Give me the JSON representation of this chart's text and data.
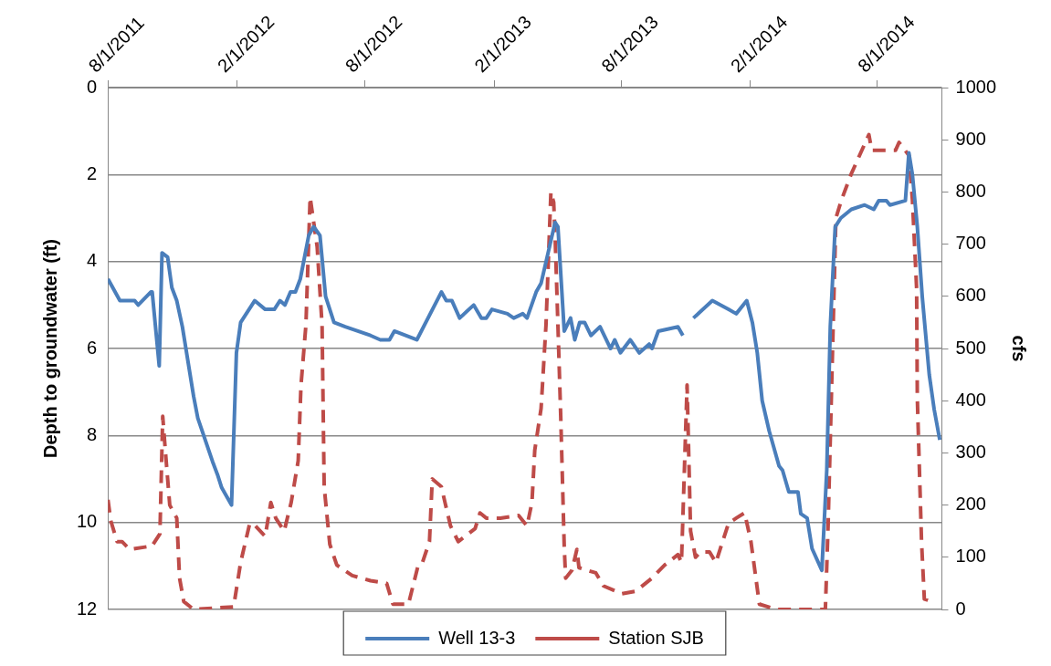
{
  "chart_data": {
    "type": "line",
    "ylabel": "Depth to groundwater (ft)",
    "y2label": "cfs",
    "xlim": [
      "2011-08-01",
      "2014-11-01"
    ],
    "xticks": [
      {
        "value": "2011-08-01",
        "label": "8/1/2011"
      },
      {
        "value": "2012-02-01",
        "label": "2/1/2012"
      },
      {
        "value": "2012-08-01",
        "label": "8/1/2012"
      },
      {
        "value": "2013-02-01",
        "label": "2/1/2013"
      },
      {
        "value": "2013-08-01",
        "label": "8/1/2013"
      },
      {
        "value": "2014-02-01",
        "label": "2/1/2014"
      },
      {
        "value": "2014-08-01",
        "label": "8/1/2014"
      }
    ],
    "ylim": [
      12,
      0
    ],
    "yticks": [
      0,
      2,
      4,
      6,
      8,
      10,
      12
    ],
    "y2lim": [
      0,
      1000
    ],
    "y2ticks": [
      0,
      100,
      200,
      300,
      400,
      500,
      600,
      700,
      800,
      900,
      1000
    ],
    "grid": "y",
    "legend": "bottom",
    "marker": "none",
    "series": [
      {
        "name": "Well 13-3",
        "color": "#4a7ebb",
        "line_style": "solid",
        "x": [
          "2011-08-01",
          "2011-08-18",
          "2011-09-08",
          "2011-09-13",
          "2011-10-01",
          "2011-10-03",
          "2011-10-13",
          "2011-10-17",
          "2011-10-25",
          "2011-10-31",
          "2011-11-07",
          "2011-11-15",
          "2011-12-01",
          "2011-12-07",
          "2011-12-28",
          "2012-01-04",
          "2012-01-10",
          "2012-01-24",
          "2012-01-31",
          "2012-02-06",
          "2012-02-26",
          "2012-03-12",
          "2012-03-25",
          "2012-04-02",
          "2012-04-09",
          "2012-04-17",
          "2012-04-24",
          "2012-05-01",
          "2012-05-13",
          "2012-05-20",
          "2012-05-29",
          "2012-06-06",
          "2012-06-18",
          "2012-07-04",
          "2012-07-22",
          "2012-08-09",
          "2012-08-23",
          "2012-08-30",
          "2012-09-05",
          "2012-09-12",
          "2012-10-14",
          "2012-11-18",
          "2012-11-25",
          "2012-12-03",
          "2012-12-14",
          "2013-01-03",
          "2013-01-14",
          "2013-01-21",
          "2013-01-29",
          "2013-02-20",
          "2013-03-01",
          "2013-03-14",
          "2013-03-20",
          "2013-04-02",
          "2013-04-09",
          "2013-04-19",
          "2013-04-29",
          "2013-05-03",
          "2013-05-12",
          "2013-05-21",
          "2013-05-27",
          "2013-06-03",
          "2013-06-10",
          "2013-06-19",
          "2013-07-02",
          "2013-07-17",
          "2013-07-23",
          "2013-07-31",
          "2013-08-14",
          "2013-08-27",
          "2013-09-10",
          "2013-09-14",
          "2013-09-23",
          "2013-10-21",
          "2013-10-28",
          "2013-11-05",
          "2013-11-12",
          "2013-12-09",
          "2014-01-01",
          "2014-01-12",
          "2014-01-27",
          "2014-02-04",
          "2014-02-11",
          "2014-02-18",
          "2014-02-28",
          "2014-03-14",
          "2014-03-19",
          "2014-03-28",
          "2014-04-10",
          "2014-04-14",
          "2014-04-23",
          "2014-04-30",
          "2014-05-14",
          "2014-05-21",
          "2014-05-26",
          "2014-06-02",
          "2014-06-10",
          "2014-06-25",
          "2014-07-14",
          "2014-07-27",
          "2014-08-03",
          "2014-08-14",
          "2014-08-19",
          "2014-09-10",
          "2014-09-15",
          "2014-09-20",
          "2014-09-27",
          "2014-10-04",
          "2014-10-14",
          "2014-10-21",
          "2014-10-29"
        ],
        "values": [
          4.4,
          4.9,
          4.9,
          5.0,
          4.7,
          4.7,
          6.4,
          3.8,
          3.9,
          4.6,
          4.9,
          5.5,
          7.1,
          7.6,
          8.6,
          8.9,
          9.2,
          9.6,
          6.1,
          5.4,
          4.9,
          5.1,
          5.1,
          4.9,
          5.0,
          4.7,
          4.7,
          4.4,
          3.4,
          3.2,
          3.4,
          4.8,
          5.4,
          5.5,
          5.6,
          5.7,
          5.8,
          5.8,
          5.8,
          5.6,
          5.8,
          4.7,
          4.9,
          4.9,
          5.3,
          5.0,
          5.3,
          5.3,
          5.1,
          5.2,
          5.3,
          5.2,
          5.3,
          4.7,
          4.5,
          3.8,
          3.1,
          3.2,
          5.6,
          5.3,
          5.8,
          5.4,
          5.4,
          5.7,
          5.5,
          6.0,
          5.8,
          6.1,
          5.8,
          6.1,
          5.9,
          6.0,
          5.6,
          5.5,
          5.7,
          null,
          5.3,
          4.9,
          5.1,
          5.2,
          4.9,
          5.4,
          6.1,
          7.2,
          7.9,
          8.7,
          8.8,
          9.3,
          9.3,
          9.8,
          9.9,
          10.6,
          11.1,
          8.8,
          5.5,
          3.2,
          3.0,
          2.8,
          2.7,
          2.8,
          2.6,
          2.6,
          2.7,
          2.6,
          1.5,
          2.0,
          3.2,
          4.8,
          6.6,
          7.4,
          8.1
        ]
      },
      {
        "name": "Station SJB",
        "color": "#be4b48",
        "line_style": "dashed",
        "axis": "y2",
        "x": [
          "2011-08-01",
          "2011-08-05",
          "2011-08-14",
          "2011-08-21",
          "2011-09-01",
          "2011-09-25",
          "2011-10-02",
          "2011-10-14",
          "2011-10-18",
          "2011-10-22",
          "2011-10-28",
          "2011-11-07",
          "2011-11-11",
          "2011-11-17",
          "2011-12-01",
          "2012-01-27",
          "2012-02-06",
          "2012-02-19",
          "2012-02-27",
          "2012-03-12",
          "2012-03-20",
          "2012-03-27",
          "2012-04-08",
          "2012-04-18",
          "2012-04-28",
          "2012-05-02",
          "2012-05-09",
          "2012-05-15",
          "2012-05-25",
          "2012-06-01",
          "2012-06-04",
          "2012-06-12",
          "2012-06-22",
          "2012-07-14",
          "2012-08-09",
          "2012-09-01",
          "2012-09-10",
          "2012-10-02",
          "2012-10-16",
          "2012-10-22",
          "2012-11-01",
          "2012-11-05",
          "2012-11-18",
          "2012-11-24",
          "2012-12-01",
          "2012-12-12",
          "2013-01-05",
          "2013-01-12",
          "2013-01-21",
          "2013-02-10",
          "2013-03-08",
          "2013-03-20",
          "2013-03-27",
          "2013-03-31",
          "2013-04-09",
          "2013-04-16",
          "2013-04-23",
          "2013-04-27",
          "2013-04-29",
          "2013-05-03",
          "2013-05-07",
          "2013-05-12",
          "2013-05-14",
          "2013-05-23",
          "2013-05-30",
          "2013-06-02",
          "2013-06-26",
          "2013-07-07",
          "2013-08-02",
          "2013-08-22",
          "2013-09-14",
          "2013-10-02",
          "2013-10-21",
          "2013-10-26",
          "2013-11-03",
          "2013-11-08",
          "2013-11-15",
          "2013-11-22",
          "2013-12-05",
          "2013-12-14",
          "2014-01-01",
          "2014-01-12",
          "2014-01-24",
          "2014-02-02",
          "2014-02-14",
          "2014-03-10",
          "2014-05-03",
          "2014-05-19",
          "2014-05-23",
          "2014-06-03",
          "2014-06-11",
          "2014-06-25",
          "2014-07-20",
          "2014-07-24",
          "2014-08-10",
          "2014-08-27",
          "2014-09-01",
          "2014-09-15",
          "2014-09-20",
          "2014-09-26",
          "2014-09-27",
          "2014-10-03",
          "2014-10-07",
          "2014-10-18"
        ],
        "values": [
          210,
          170,
          130,
          130,
          115,
          120,
          120,
          145,
          370,
          300,
          200,
          175,
          60,
          15,
          0,
          5,
          90,
          165,
          160,
          140,
          205,
          175,
          150,
          205,
          285,
          430,
          545,
          790,
          695,
          545,
          235,
          125,
          85,
          65,
          55,
          50,
          10,
          10,
          85,
          90,
          130,
          250,
          235,
          200,
          160,
          130,
          155,
          185,
          175,
          175,
          180,
          160,
          205,
          305,
          385,
          545,
          800,
          780,
          715,
          545,
          370,
          120,
          60,
          75,
          115,
          80,
          70,
          45,
          30,
          35,
          60,
          85,
          105,
          90,
          430,
          150,
          100,
          110,
          110,
          90,
          165,
          175,
          185,
          130,
          10,
          0,
          0,
          0,
          165,
          750,
          785,
          835,
          910,
          880,
          880,
          880,
          895,
          870,
          785,
          615,
          405,
          130,
          20,
          15
        ]
      }
    ]
  }
}
